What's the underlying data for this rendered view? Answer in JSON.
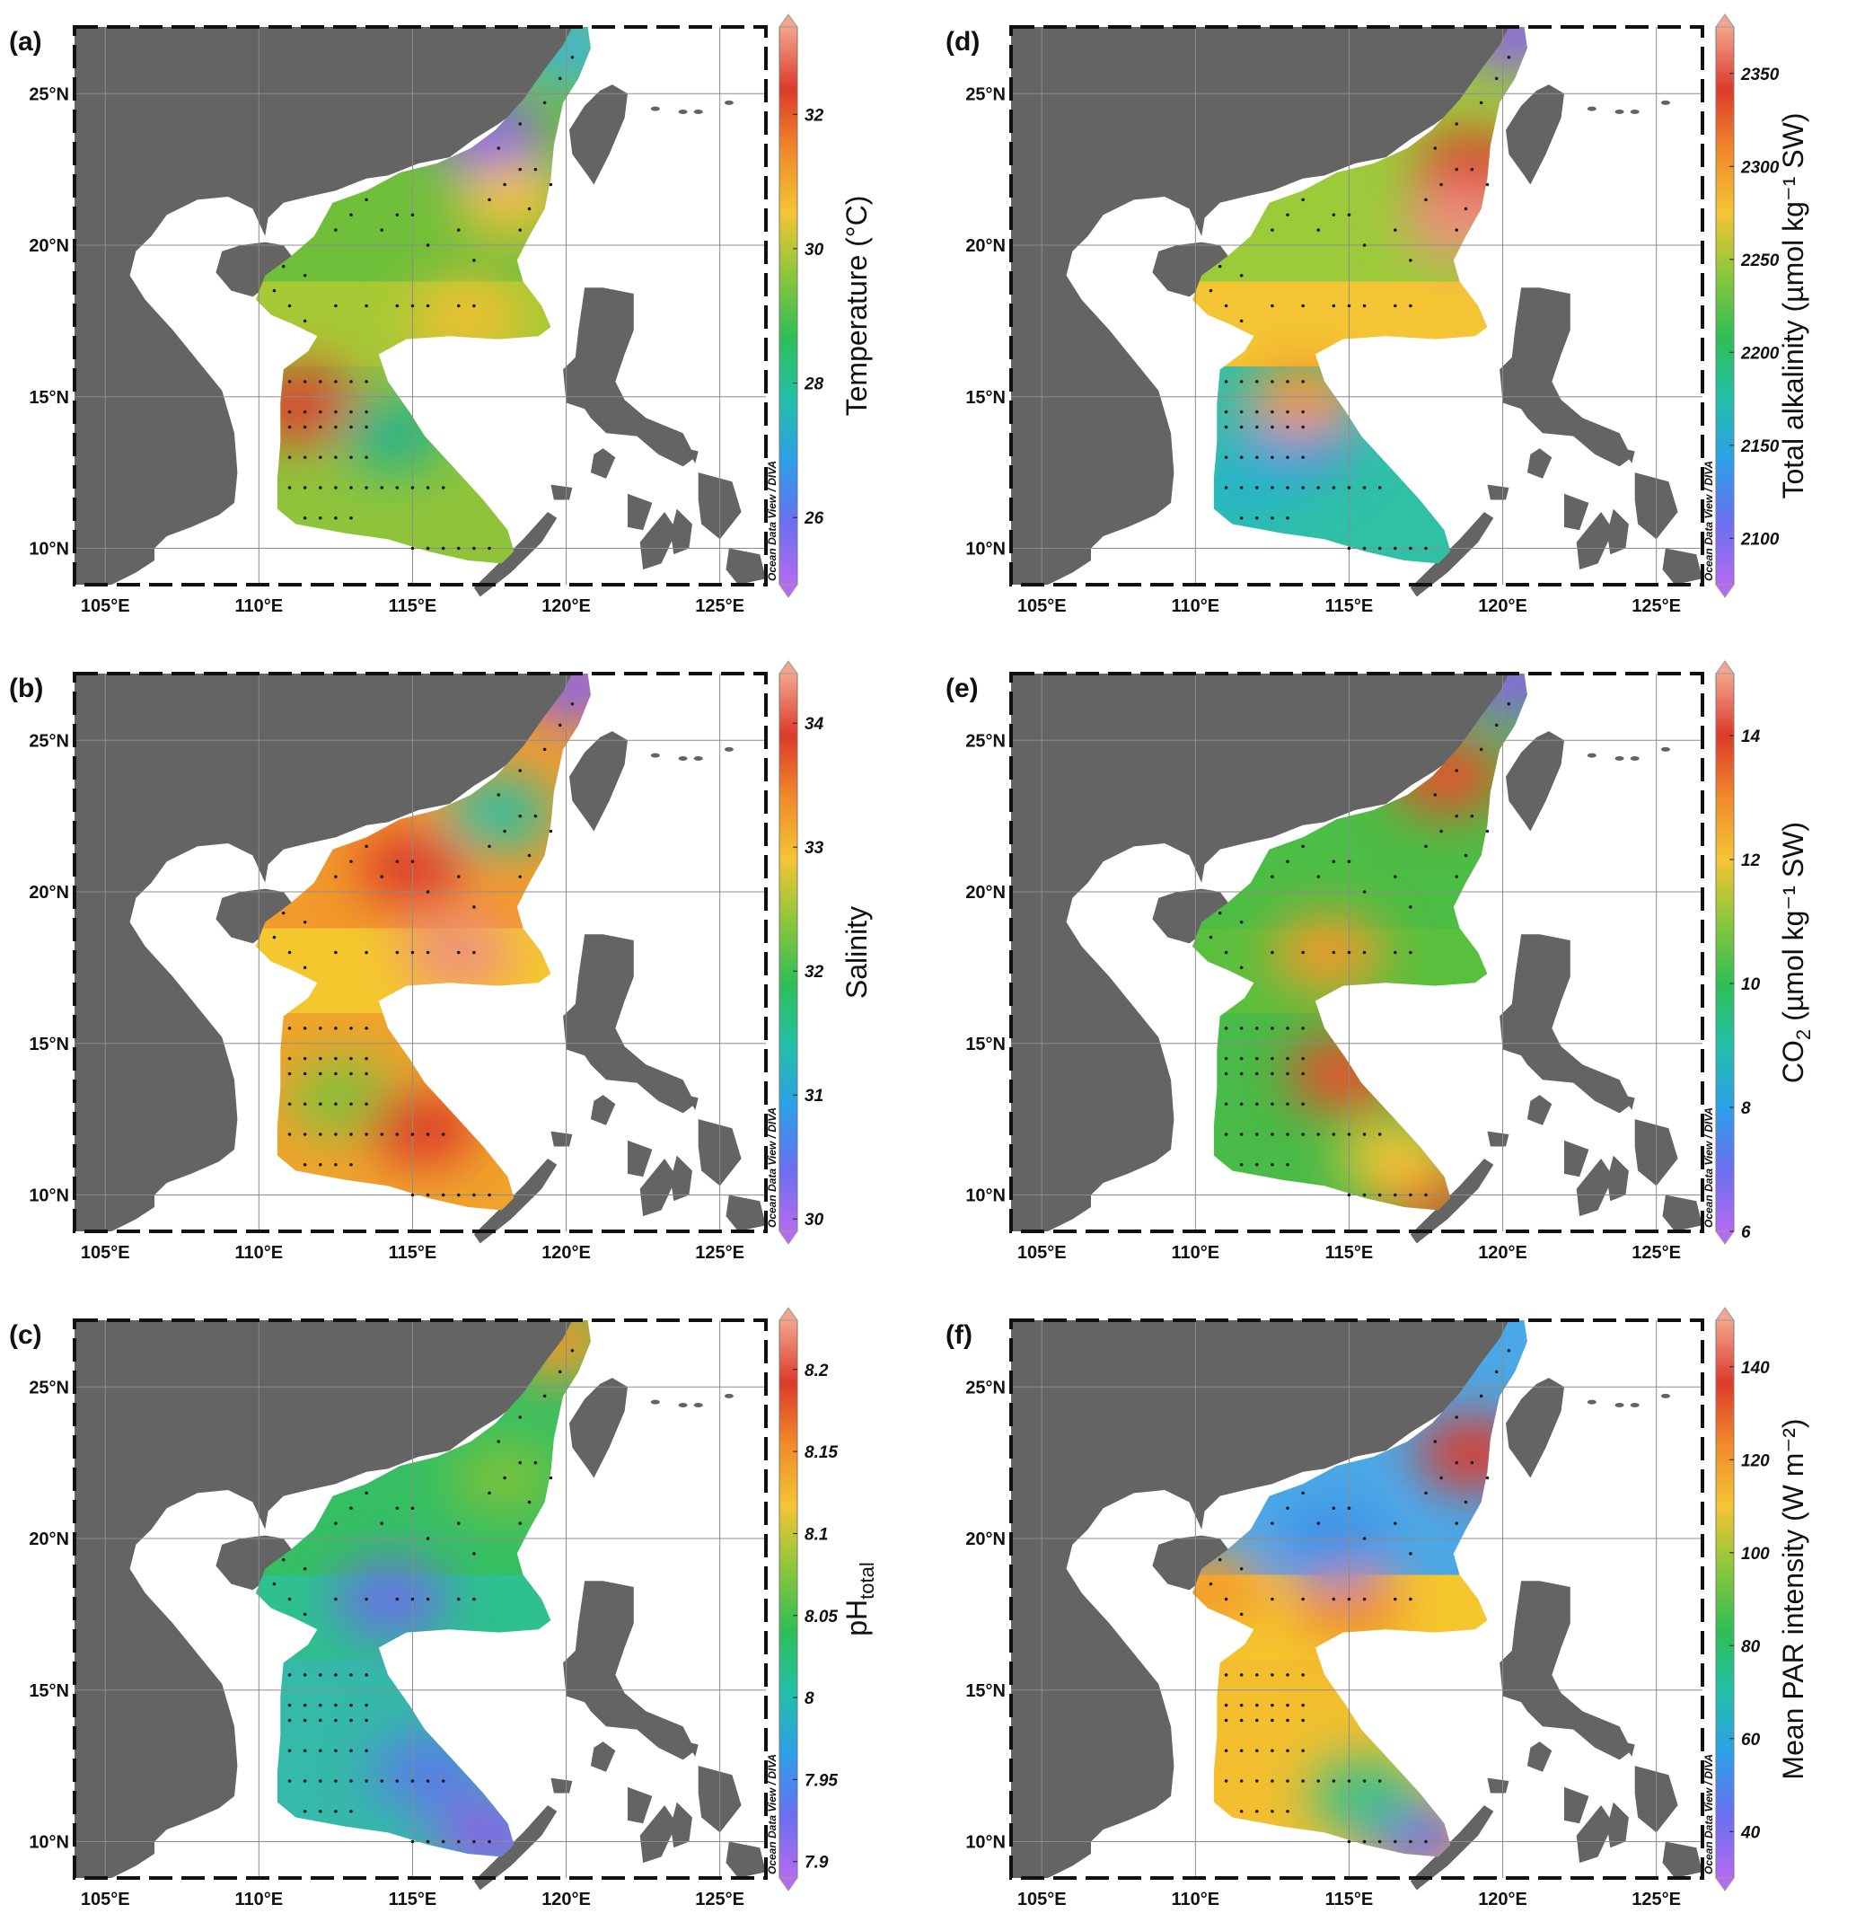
{
  "figure": {
    "panels": [
      {
        "label": "(a)",
        "colorbar_title": "Temperature (°C)",
        "colorbar_ticks": [
          "32",
          "30",
          "28",
          "26"
        ],
        "colorbar_tick_values": [
          32,
          30,
          28,
          26
        ],
        "colorbar_range": [
          25,
          33.3
        ],
        "credit": "Ocean Data View / DIVA",
        "colors": {
          "north": "#6fbf3a",
          "neck": "#a6c935",
          "south": "#8fc43a"
        },
        "hotspots": [
          {
            "lon": 117.5,
            "lat": 23.6,
            "value": 26,
            "color": "#8a63e8"
          },
          {
            "lon": 118.2,
            "lat": 21.5,
            "value": 30.5,
            "color": "#f2c13a"
          },
          {
            "lon": 111.5,
            "lat": 14.7,
            "value": 32,
            "color": "#e03a2a"
          },
          {
            "lon": 114.3,
            "lat": 13.8,
            "value": 28,
            "color": "#22b38a"
          },
          {
            "lon": 116.8,
            "lat": 17.6,
            "value": 30.5,
            "color": "#f0c030"
          },
          {
            "lon": 120.2,
            "lat": 26.5,
            "value": 27.5,
            "color": "#3fb5d9"
          }
        ]
      },
      {
        "label": "(b)",
        "colorbar_title": "Salinity",
        "colorbar_ticks": [
          "34",
          "33",
          "32",
          "31",
          "30"
        ],
        "colorbar_tick_values": [
          34,
          33,
          32,
          31,
          30
        ],
        "colorbar_range": [
          29.9,
          34.4
        ],
        "credit": "Ocean Data View / DIVA",
        "colors": {
          "north": "#f29a2b",
          "neck": "#f5c72e",
          "south": "#f0a32c"
        },
        "hotspots": [
          {
            "lon": 116.5,
            "lat": 18.0,
            "value": 34.2,
            "color": "#ef8f80"
          },
          {
            "lon": 115.0,
            "lat": 20.8,
            "value": 33.8,
            "color": "#dc3a2a"
          },
          {
            "lon": 117.8,
            "lat": 22.6,
            "value": 32.2,
            "color": "#2fbfa0"
          },
          {
            "lon": 112.8,
            "lat": 13.2,
            "value": 32.5,
            "color": "#7cc23a"
          },
          {
            "lon": 115.3,
            "lat": 12.2,
            "value": 33.8,
            "color": "#dc3a2a"
          },
          {
            "lon": 120.3,
            "lat": 26.8,
            "value": 30.5,
            "color": "#8a63e8"
          }
        ]
      },
      {
        "label": "(c)",
        "colorbar_title": "pH",
        "colorbar_title_sub": "total",
        "colorbar_ticks": [
          "8.2",
          "8.15",
          "8.1",
          "8.05",
          "8",
          "7.95",
          "7.9"
        ],
        "colorbar_tick_values": [
          8.2,
          8.15,
          8.1,
          8.05,
          8.0,
          7.95,
          7.9
        ],
        "colorbar_range": [
          7.89,
          8.23
        ],
        "credit": "Ocean Data View / DIVA",
        "colors": {
          "north": "#35bf62",
          "neck": "#2ec08e",
          "south": "#35b9a8"
        },
        "hotspots": [
          {
            "lon": 114.3,
            "lat": 18.0,
            "value": 7.95,
            "color": "#6b6fe6"
          },
          {
            "lon": 115.5,
            "lat": 12.3,
            "value": 7.95,
            "color": "#5a7ce8"
          },
          {
            "lon": 117.5,
            "lat": 10.2,
            "value": 7.93,
            "color": "#8a63e8"
          },
          {
            "lon": 118.0,
            "lat": 22.0,
            "value": 8.08,
            "color": "#7cc23a"
          },
          {
            "lon": 119.8,
            "lat": 26.5,
            "value": 8.2,
            "color": "#f29a2b"
          }
        ]
      },
      {
        "label": "(d)",
        "colorbar_title": "Total alkalinity (µmol kg⁻¹ SW)",
        "colorbar_ticks": [
          "2350",
          "2300",
          "2250",
          "2200",
          "2150",
          "2100"
        ],
        "colorbar_tick_values": [
          2350,
          2300,
          2250,
          2200,
          2150,
          2100
        ],
        "colorbar_range": [
          2075,
          2375
        ],
        "credit": "Ocean Data View / DIVA",
        "colors": {
          "north": "#9ccb3a",
          "neck": "#f4c534",
          "south": "#2fc0a6"
        },
        "hotspots": [
          {
            "lon": 119.0,
            "lat": 22.5,
            "value": 2340,
            "color": "#dc3a2a"
          },
          {
            "lon": 118.6,
            "lat": 20.8,
            "value": 2350,
            "color": "#ef8f80"
          },
          {
            "lon": 113.3,
            "lat": 13.6,
            "value": 2150,
            "color": "#3d8fe8"
          },
          {
            "lon": 111.5,
            "lat": 12.0,
            "value": 2175,
            "color": "#25b5c8"
          },
          {
            "lon": 113.5,
            "lat": 15.0,
            "value": 2290,
            "color": "#f29a2b"
          },
          {
            "lon": 120.3,
            "lat": 27.0,
            "value": 2110,
            "color": "#8a63e8"
          }
        ]
      },
      {
        "label": "(e)",
        "colorbar_title": "CO",
        "colorbar_title_sub": "2",
        "colorbar_title_rest": " (µmol kg⁻¹ SW)",
        "colorbar_ticks": [
          "14",
          "12",
          "10",
          "8",
          "6"
        ],
        "colorbar_tick_values": [
          14,
          12,
          10,
          8,
          6
        ],
        "colorbar_range": [
          6,
          15
        ],
        "credit": "Ocean Data View / DIVA",
        "colors": {
          "north": "#4cbd45",
          "neck": "#5bbf3e",
          "south": "#48bb48"
        },
        "hotspots": [
          {
            "lon": 114.3,
            "lat": 18.0,
            "value": 12.5,
            "color": "#f29a2b"
          },
          {
            "lon": 114.8,
            "lat": 14.0,
            "value": 13.5,
            "color": "#e8502a"
          },
          {
            "lon": 117.6,
            "lat": 10.0,
            "value": 14,
            "color": "#dc3a2a"
          },
          {
            "lon": 118.2,
            "lat": 23.8,
            "value": 13.5,
            "color": "#e8502a"
          },
          {
            "lon": 116.5,
            "lat": 11.2,
            "value": 12,
            "color": "#f4c534"
          },
          {
            "lon": 120.3,
            "lat": 27.0,
            "value": 7,
            "color": "#8a63e8"
          }
        ]
      },
      {
        "label": "(f)",
        "colorbar_title": "Mean PAR intensity (W m⁻²)",
        "colorbar_ticks": [
          "140",
          "120",
          "100",
          "80",
          "60",
          "40"
        ],
        "colorbar_tick_values": [
          140,
          120,
          100,
          80,
          60,
          40
        ],
        "colorbar_range": [
          30,
          150
        ],
        "credit": "Ocean Data View / DIVA",
        "colors": {
          "north": "#4aa8e6",
          "neck": "#f5c72e",
          "south": "#f3bf2e"
        },
        "hotspots": [
          {
            "lon": 119.0,
            "lat": 22.8,
            "value": 135,
            "color": "#dc3a2a"
          },
          {
            "lon": 115.0,
            "lat": 17.8,
            "value": 120,
            "color": "#f08a2b"
          },
          {
            "lon": 110.5,
            "lat": 18.3,
            "value": 115,
            "color": "#f29a2b"
          },
          {
            "lon": 117.2,
            "lat": 10.2,
            "value": 50,
            "color": "#7b6ae6"
          },
          {
            "lon": 115.5,
            "lat": 11.5,
            "value": 80,
            "color": "#35c08a"
          },
          {
            "lon": 114.5,
            "lat": 19.8,
            "value": 65,
            "color": "#3d8fe8"
          }
        ]
      }
    ],
    "lon_ticks": [
      "105°E",
      "110°E",
      "115°E",
      "120°E",
      "125°E"
    ],
    "lon_values": [
      105,
      110,
      115,
      120,
      125
    ],
    "lat_ticks": [
      "25°N",
      "20°N",
      "15°N",
      "10°N"
    ],
    "lat_values": [
      25,
      20,
      15,
      10
    ],
    "extent": {
      "lon": [
        104,
        126.5
      ],
      "lat": [
        8.8,
        27.2
      ]
    },
    "land_color": "#646464",
    "station_color": "#1a1a1a",
    "stations": [
      [
        111,
        15.5
      ],
      [
        111.5,
        15.5
      ],
      [
        112,
        15.5
      ],
      [
        112.5,
        15.5
      ],
      [
        113,
        15.5
      ],
      [
        113.5,
        15.5
      ],
      [
        111,
        14.5
      ],
      [
        111.5,
        14.5
      ],
      [
        112,
        14.5
      ],
      [
        112.5,
        14.5
      ],
      [
        113,
        14.5
      ],
      [
        113.5,
        14.5
      ],
      [
        111,
        14
      ],
      [
        111.5,
        14
      ],
      [
        112,
        14
      ],
      [
        112.5,
        14
      ],
      [
        113,
        14
      ],
      [
        113.5,
        14
      ],
      [
        111,
        13
      ],
      [
        111.5,
        13
      ],
      [
        112,
        13
      ],
      [
        112.5,
        13
      ],
      [
        113,
        13
      ],
      [
        113.5,
        13
      ],
      [
        111,
        12
      ],
      [
        111.5,
        12
      ],
      [
        112,
        12
      ],
      [
        112.5,
        12
      ],
      [
        113,
        12
      ],
      [
        113.5,
        12
      ],
      [
        111.5,
        11
      ],
      [
        112,
        11
      ],
      [
        112.5,
        11
      ],
      [
        113,
        11
      ],
      [
        114,
        12
      ],
      [
        114.5,
        12
      ],
      [
        115,
        12
      ],
      [
        115.5,
        12
      ],
      [
        116,
        12
      ],
      [
        115,
        10
      ],
      [
        115.5,
        10
      ],
      [
        116,
        10
      ],
      [
        116.5,
        10
      ],
      [
        117,
        10
      ],
      [
        117.5,
        10
      ],
      [
        110.5,
        18.5
      ],
      [
        111,
        18
      ],
      [
        111.5,
        17.5
      ],
      [
        110.8,
        19.3
      ],
      [
        111.5,
        19
      ],
      [
        112.5,
        18
      ],
      [
        113.5,
        18
      ],
      [
        114.5,
        18
      ],
      [
        115,
        18
      ],
      [
        115.5,
        18
      ],
      [
        116.5,
        18
      ],
      [
        117,
        18
      ],
      [
        112.5,
        20.5
      ],
      [
        113,
        21
      ],
      [
        113.5,
        21.5
      ],
      [
        114,
        20.5
      ],
      [
        114.5,
        21
      ],
      [
        115,
        21
      ],
      [
        115.5,
        20
      ],
      [
        116.5,
        20.5
      ],
      [
        117,
        19.5
      ],
      [
        117.5,
        21.5
      ],
      [
        118,
        22
      ],
      [
        118.5,
        22.5
      ],
      [
        119,
        22.5
      ],
      [
        119.5,
        22
      ],
      [
        118.5,
        20.5
      ],
      [
        118.8,
        21.2
      ],
      [
        117.8,
        23.2
      ],
      [
        118.5,
        24
      ],
      [
        119.3,
        24.7
      ],
      [
        119.8,
        25.5
      ],
      [
        120.2,
        26.2
      ]
    ]
  }
}
